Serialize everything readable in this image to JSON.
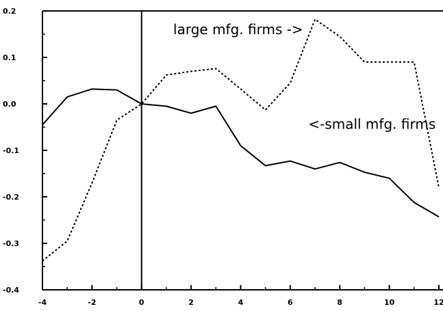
{
  "chart_data": {
    "type": "line",
    "title": "",
    "xlabel": "",
    "ylabel": "",
    "xlim": [
      -4,
      12
    ],
    "ylim": [
      -0.4,
      0.2
    ],
    "x_ticks": [
      -4,
      -2,
      0,
      2,
      4,
      6,
      8,
      10,
      12
    ],
    "x_tick_labels": [
      "-4",
      "-2",
      "0",
      "2",
      "4",
      "6",
      "8",
      "10",
      "12"
    ],
    "y_ticks": [
      0.2,
      0.1,
      0.0,
      -0.1,
      -0.2,
      -0.3,
      -0.4
    ],
    "y_tick_labels": [
      "0.2",
      "0.1",
      "0.0",
      "-0.1",
      "-0.2",
      "-0.3",
      "-0.4"
    ],
    "grid": false,
    "vertical_reference_line_x": 0,
    "x": [
      -4,
      -3,
      -2,
      -1,
      0,
      1,
      2,
      3,
      4,
      5,
      6,
      7,
      8,
      9,
      10,
      11,
      12
    ],
    "series": [
      {
        "style": "solid",
        "color": "#000000",
        "values": [
          -0.045,
          0.015,
          0.032,
          0.03,
          0.0,
          -0.005,
          -0.02,
          -0.005,
          -0.09,
          -0.133,
          -0.123,
          -0.14,
          -0.126,
          -0.147,
          -0.16,
          -0.212,
          -0.243
        ]
      },
      {
        "style": "dashed",
        "color": "#000000",
        "values": [
          -0.338,
          -0.295,
          -0.17,
          -0.035,
          0.0,
          0.062,
          0.07,
          0.076,
          0.032,
          -0.013,
          0.045,
          0.182,
          0.145,
          0.09,
          0.09,
          0.09,
          -0.18
        ]
      }
    ],
    "annotations": [
      {
        "text": "large mfg. firms ->",
        "x": 3.9,
        "y": 0.15
      },
      {
        "text": "<-small mfg. firms",
        "x": 9.3,
        "y": -0.054
      }
    ]
  }
}
